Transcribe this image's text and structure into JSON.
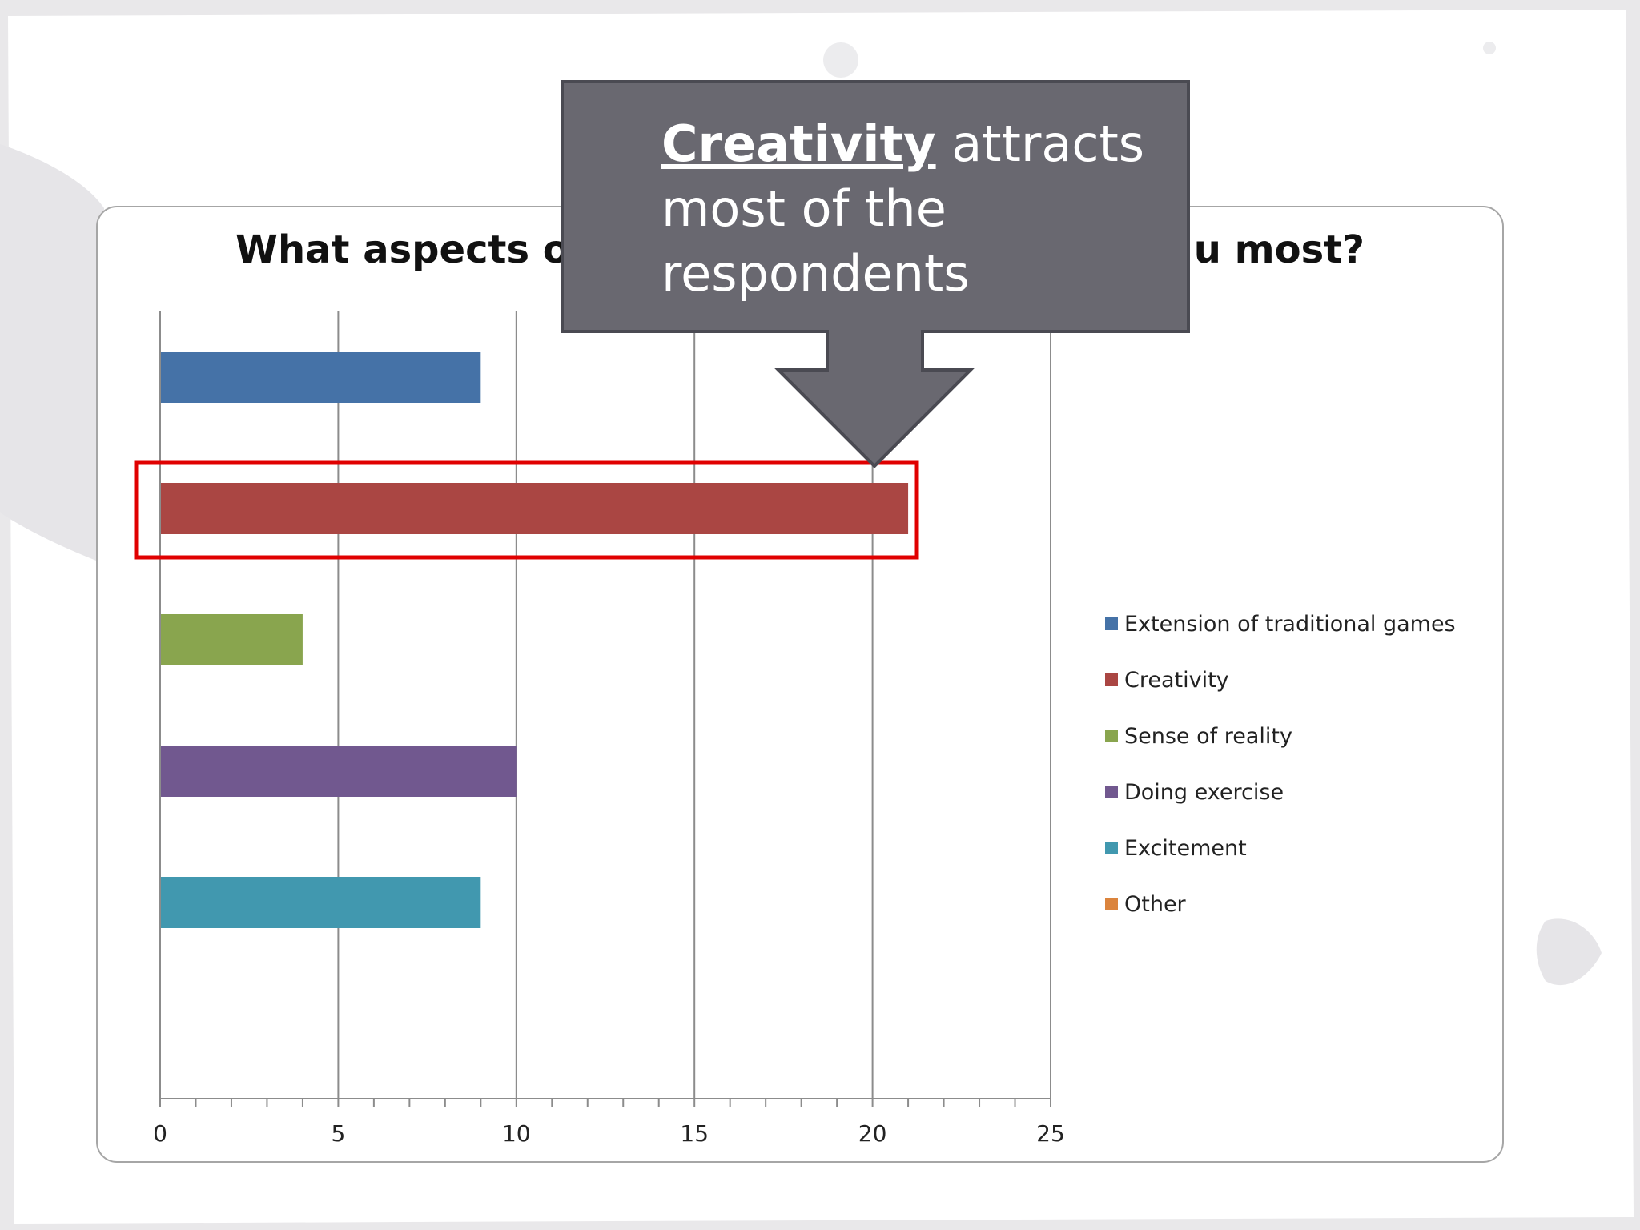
{
  "chart_data": {
    "type": "bar",
    "orientation": "horizontal",
    "title": "What aspects o",
    "title_end": "u most?",
    "categories": [
      "Extension of traditional games",
      "Creativity",
      "Sense of reality",
      "Doing exercise",
      "Excitement",
      "Other"
    ],
    "values": [
      9,
      21,
      4,
      10,
      9,
      0
    ],
    "colors": [
      "#4572a7",
      "#aa4643",
      "#89a54e",
      "#71588f",
      "#4198af",
      "#db843d"
    ],
    "xlim": [
      0,
      25
    ],
    "x_ticks": [
      "0",
      "5",
      "10",
      "15",
      "20",
      "25"
    ],
    "x_ticks_values": [
      0,
      5,
      10,
      15,
      20,
      25
    ],
    "grid": "vertical major gridlines",
    "legend_position": "right",
    "highlight_category": "Creativity",
    "highlight_color": "#e00000"
  },
  "callout": {
    "keyword": "Creativity",
    "text": " attracts most of the respondents",
    "background": "#696870"
  }
}
